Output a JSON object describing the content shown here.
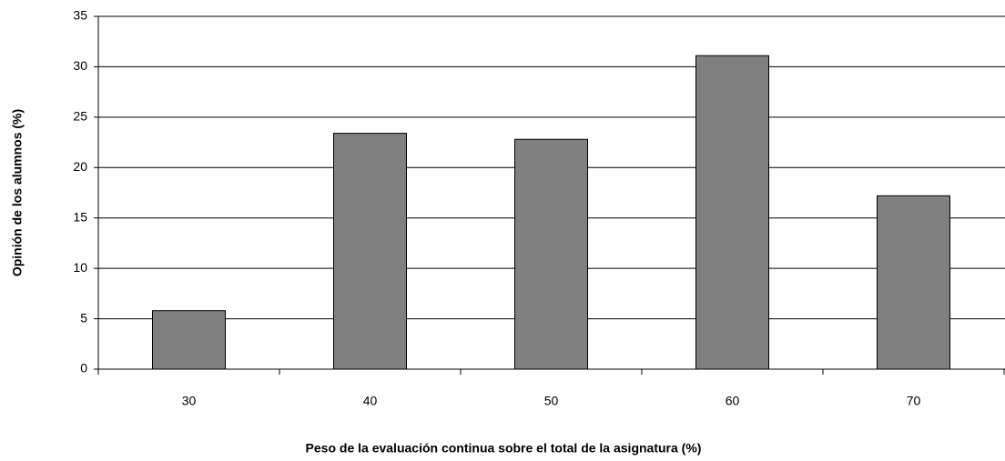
{
  "chart_data": {
    "type": "bar",
    "xlabel": "Peso de la evaluación continua sobre el total de la asignatura (%)",
    "ylabel": "Opinión de los alumnos (%)",
    "categories": [
      "30",
      "40",
      "50",
      "60",
      "70"
    ],
    "values": [
      5.8,
      23.4,
      22.8,
      31.1,
      17.2
    ],
    "color": "#808080",
    "ylim": [
      0,
      35
    ],
    "yticks": [
      0,
      5,
      10,
      15,
      20,
      25,
      30,
      35
    ],
    "grid": true
  }
}
